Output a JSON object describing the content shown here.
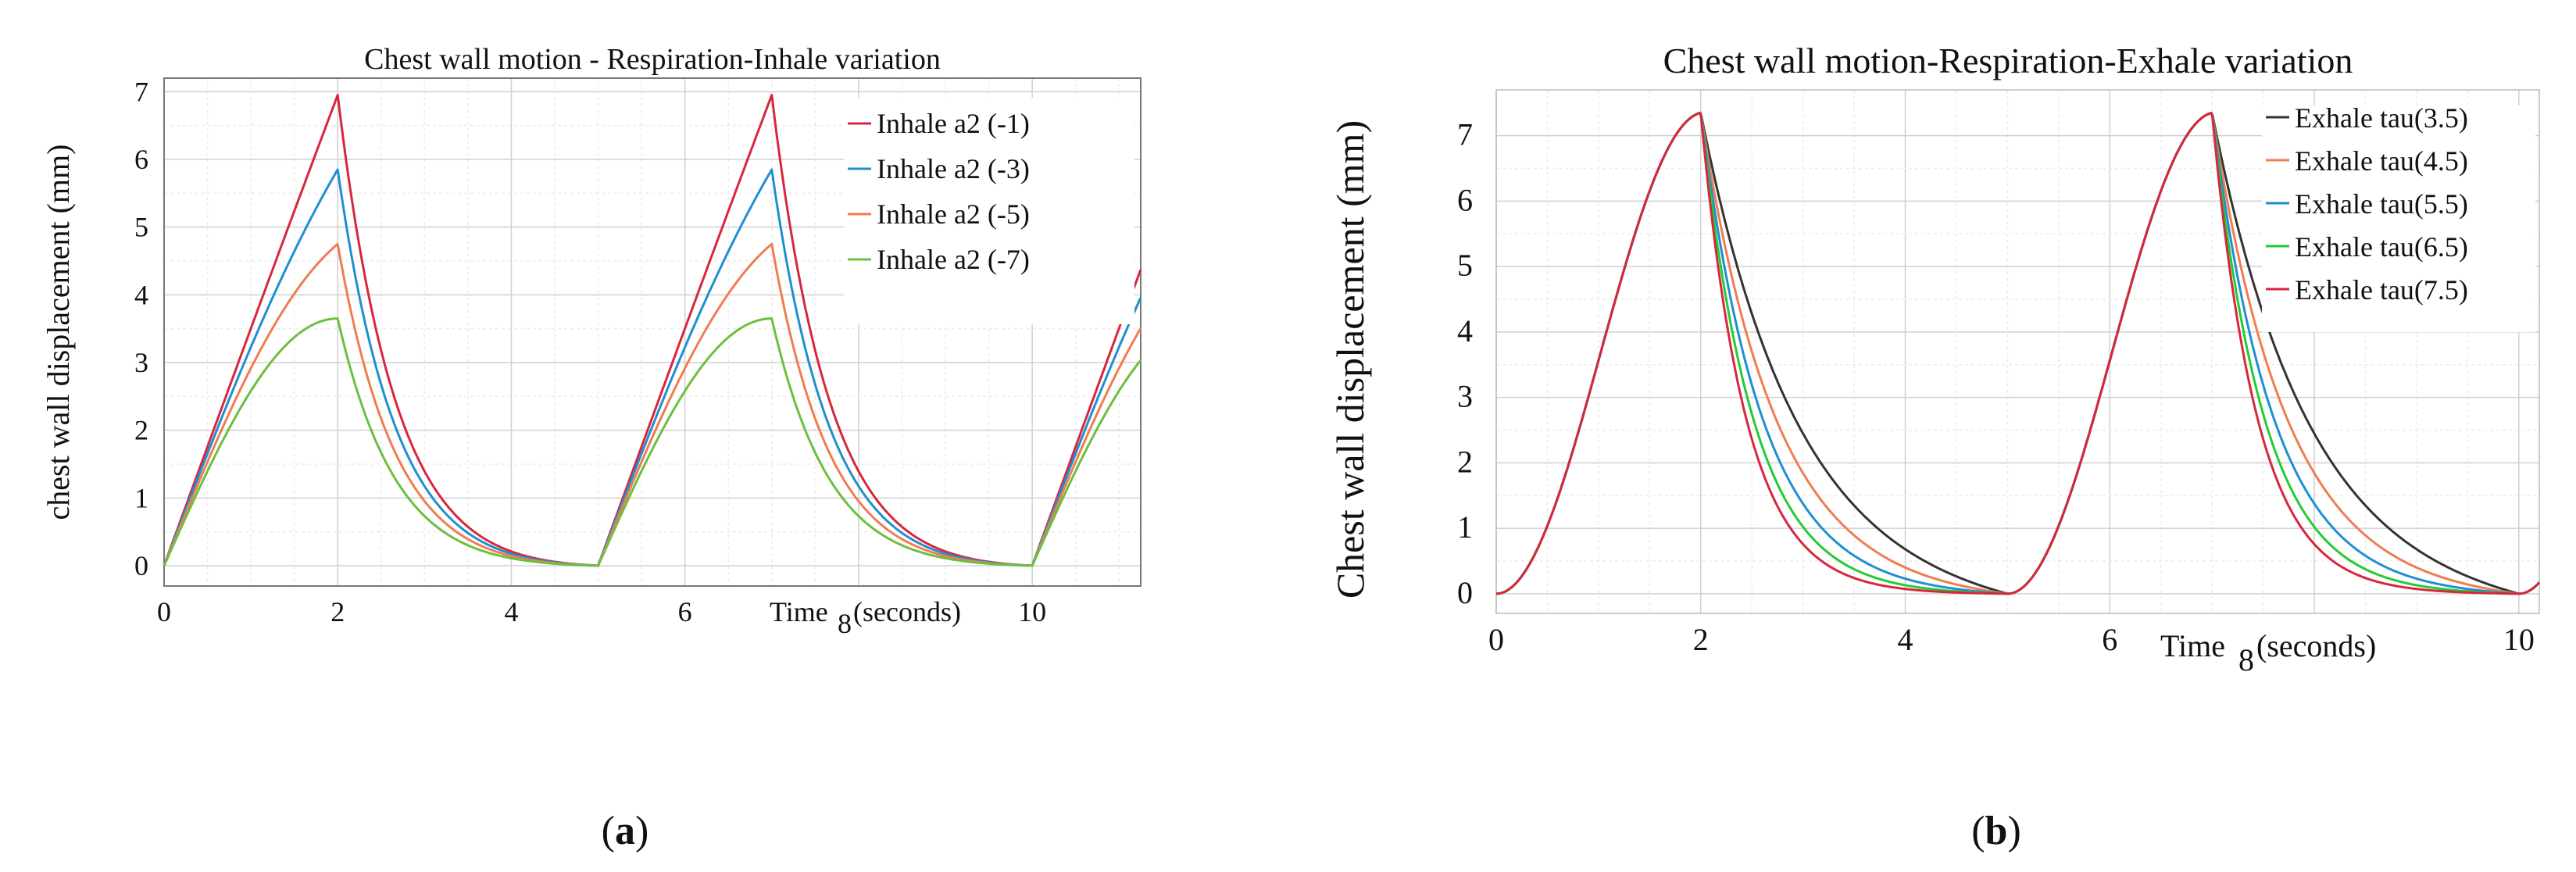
{
  "chart_data": [
    {
      "type": "line",
      "id": "a",
      "title": "Chest wall motion - Respiration-Inhale variation",
      "ylabel": "chest wall displacement (mm)",
      "xlabel": "Time",
      "xlabel_tick": "8",
      "xlabel_rest": "(seconds)",
      "xlim": [
        0,
        11.25
      ],
      "ylim": [
        -0.3,
        7.2
      ],
      "xticks": [
        "0",
        "2",
        "4",
        "6",
        "10"
      ],
      "yticks": [
        "0",
        "1",
        "2",
        "3",
        "4",
        "5",
        "6",
        "7"
      ],
      "model": {
        "period": 5,
        "inhale_end": 2,
        "rest": 5,
        "amp_scale": 1.0,
        "shape": "inhale"
      },
      "series": [
        {
          "name": "Inhale a2 (-1)",
          "color": "#d7263d",
          "peak": 6.95,
          "k": 0.02
        },
        {
          "name": "Inhale a2 (-3)",
          "color": "#1f8fd1",
          "peak": 5.85,
          "k": 0.25
        },
        {
          "name": "Inhale a2 (-5)",
          "color": "#f07c52",
          "peak": 4.75,
          "k": 0.55
        },
        {
          "name": "Inhale a2 (-7)",
          "color": "#6cbf3f",
          "peak": 3.65,
          "k": 1.0
        }
      ],
      "caption": "(a)"
    },
    {
      "type": "line",
      "id": "b",
      "title": "Chest wall motion-Respiration-Exhale variation",
      "ylabel": "Chest wall displacement (mm)",
      "xlabel": "Time",
      "xlabel_tick": "8",
      "xlabel_rest": "(seconds)",
      "xlim": [
        0,
        10.2
      ],
      "ylim": [
        -0.3,
        7.7
      ],
      "xticks": [
        "0",
        "2",
        "4",
        "6",
        "10"
      ],
      "yticks": [
        "0",
        "1",
        "2",
        "3",
        "4",
        "5",
        "6",
        "7"
      ],
      "model": {
        "period": 5,
        "inhale_end": 2,
        "rest": 5,
        "peak": 7.35,
        "shape": "exhale"
      },
      "series": [
        {
          "name": "Exhale tau(3.5)",
          "color": "#333333",
          "tau": 3.5
        },
        {
          "name": "Exhale tau(4.5)",
          "color": "#f07c52",
          "tau": 4.5
        },
        {
          "name": "Exhale tau(5.5)",
          "color": "#1f8fd1",
          "tau": 5.5
        },
        {
          "name": "Exhale tau(6.5)",
          "color": "#22cc33",
          "tau": 6.5
        },
        {
          "name": "Exhale tau(7.5)",
          "color": "#d7263d",
          "tau": 7.5
        }
      ],
      "caption": "(b)"
    }
  ]
}
